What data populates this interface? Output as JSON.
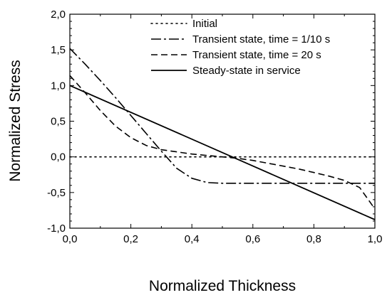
{
  "chart_data": {
    "type": "line",
    "title": "",
    "xlabel": "Normalized Thickness",
    "ylabel": "Normalized Stress",
    "xlim": [
      0.0,
      1.0
    ],
    "ylim": [
      -1.0,
      2.0
    ],
    "xticks": [
      0.0,
      0.2,
      0.4,
      0.6,
      0.8,
      1.0
    ],
    "xtick_labels": [
      "0,0",
      "0,2",
      "0,4",
      "0,6",
      "0,8",
      "1,0"
    ],
    "yticks": [
      -1.0,
      -0.5,
      0.0,
      0.5,
      1.0,
      1.5,
      2.0
    ],
    "ytick_labels": [
      "-1,0",
      "-0,5",
      "0,0",
      "0,5",
      "1,0",
      "1,5",
      "2,0"
    ],
    "grid": false,
    "legend_position": "top-right",
    "series": [
      {
        "name": "Initial",
        "line_style": "dotted",
        "x": [
          0.0,
          1.0
        ],
        "y": [
          0.0,
          0.0
        ]
      },
      {
        "name": "Transient state, time = 1/10 s",
        "line_style": "dash-dot",
        "x": [
          0.0,
          0.05,
          0.1,
          0.15,
          0.2,
          0.25,
          0.3,
          0.35,
          0.4,
          0.45,
          0.5,
          0.6,
          0.7,
          0.8,
          0.9,
          1.0
        ],
        "y": [
          1.52,
          1.3,
          1.07,
          0.83,
          0.58,
          0.33,
          0.08,
          -0.16,
          -0.3,
          -0.36,
          -0.37,
          -0.37,
          -0.37,
          -0.37,
          -0.37,
          -0.37
        ]
      },
      {
        "name": "Transient state, time = 20 s",
        "line_style": "dashed",
        "x": [
          0.0,
          0.05,
          0.1,
          0.15,
          0.2,
          0.25,
          0.3,
          0.35,
          0.4,
          0.45,
          0.5,
          0.55,
          0.6,
          0.65,
          0.7,
          0.75,
          0.8,
          0.85,
          0.9,
          0.95,
          1.0
        ],
        "y": [
          1.14,
          0.9,
          0.65,
          0.43,
          0.27,
          0.16,
          0.1,
          0.07,
          0.04,
          0.02,
          0.0,
          -0.02,
          -0.05,
          -0.09,
          -0.13,
          -0.17,
          -0.22,
          -0.27,
          -0.33,
          -0.43,
          -0.73
        ]
      },
      {
        "name": "Steady-state in service",
        "line_style": "solid",
        "x": [
          0.0,
          1.0
        ],
        "y": [
          1.0,
          -0.88
        ]
      }
    ]
  }
}
